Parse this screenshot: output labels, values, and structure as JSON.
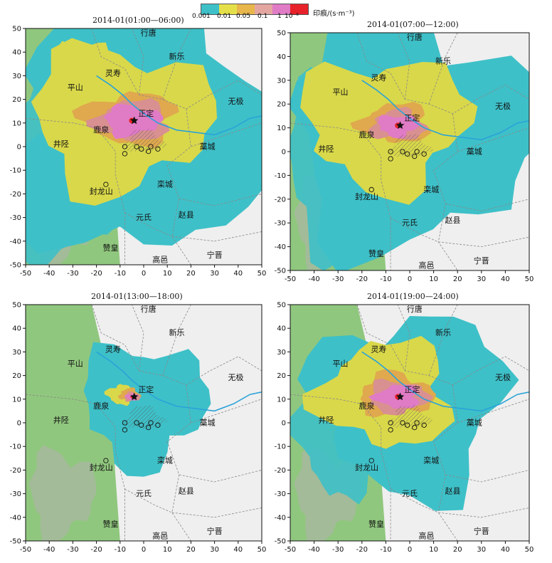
{
  "legend": {
    "colors": [
      "#3ec0c8",
      "#e5e049",
      "#e8b64a",
      "#e4a6a0",
      "#e07bc6",
      "#e8222a"
    ],
    "ticks": [
      "0.001",
      "0.01",
      "0.05",
      "0.1",
      "1",
      "10⁻⁶"
    ],
    "unit": "印痕/(s·m⁻³)"
  },
  "axes": {
    "x_ticks": [
      -50,
      -40,
      -30,
      -20,
      -10,
      0,
      10,
      20,
      30,
      40,
      50
    ],
    "y_ticks": [
      -50,
      -40,
      -30,
      -20,
      -10,
      0,
      10,
      20,
      30,
      40,
      50
    ],
    "xlim": [
      -50,
      50
    ],
    "ylim": [
      -50,
      50
    ]
  },
  "colors": {
    "base_green": "#7fbf6a",
    "cyan": "#3ec0c8",
    "yellow": "#d9d84a",
    "orange": "#e0a94e",
    "salmon": "#d99090",
    "pink": "#e07bc6",
    "red": "#e8222a",
    "river": "#2aa3d8",
    "boundary": "#888888"
  },
  "places": [
    {
      "name": "行唐",
      "x": 2,
      "y": 47
    },
    {
      "name": "灵寿",
      "x": -13,
      "y": 30
    },
    {
      "name": "新乐",
      "x": 14,
      "y": 37
    },
    {
      "name": "平山",
      "x": -29,
      "y": 24
    },
    {
      "name": "无极",
      "x": 39,
      "y": 18
    },
    {
      "name": "正定",
      "x": 1,
      "y": 13
    },
    {
      "name": "鹿泉",
      "x": -18,
      "y": 6
    },
    {
      "name": "井陉",
      "x": -35,
      "y": 0
    },
    {
      "name": "藁城",
      "x": 27,
      "y": -1
    },
    {
      "name": "栾城",
      "x": 9,
      "y": -17
    },
    {
      "name": "封龙山",
      "x": -18,
      "y": -20
    },
    {
      "name": "元氏",
      "x": 0,
      "y": -31
    },
    {
      "name": "赵县",
      "x": 18,
      "y": -30
    },
    {
      "name": "赞皇",
      "x": -14,
      "y": -44
    },
    {
      "name": "高邑",
      "x": 7,
      "y": -49
    },
    {
      "name": "宁晋",
      "x": 30,
      "y": -47
    }
  ],
  "panels": [
    {
      "title": "2014-01(01:00—06:00)",
      "spread": 1.0,
      "core": 1.0
    },
    {
      "title": "2014-01(07:00—12:00)",
      "spread": 0.85,
      "core": 0.55
    },
    {
      "title": "2014-01(13:00—18:00)",
      "spread": 0.2,
      "core": 0.35
    },
    {
      "title": "2014-01(19:00—24:00)",
      "spread": 0.55,
      "core": 0.65
    }
  ]
}
